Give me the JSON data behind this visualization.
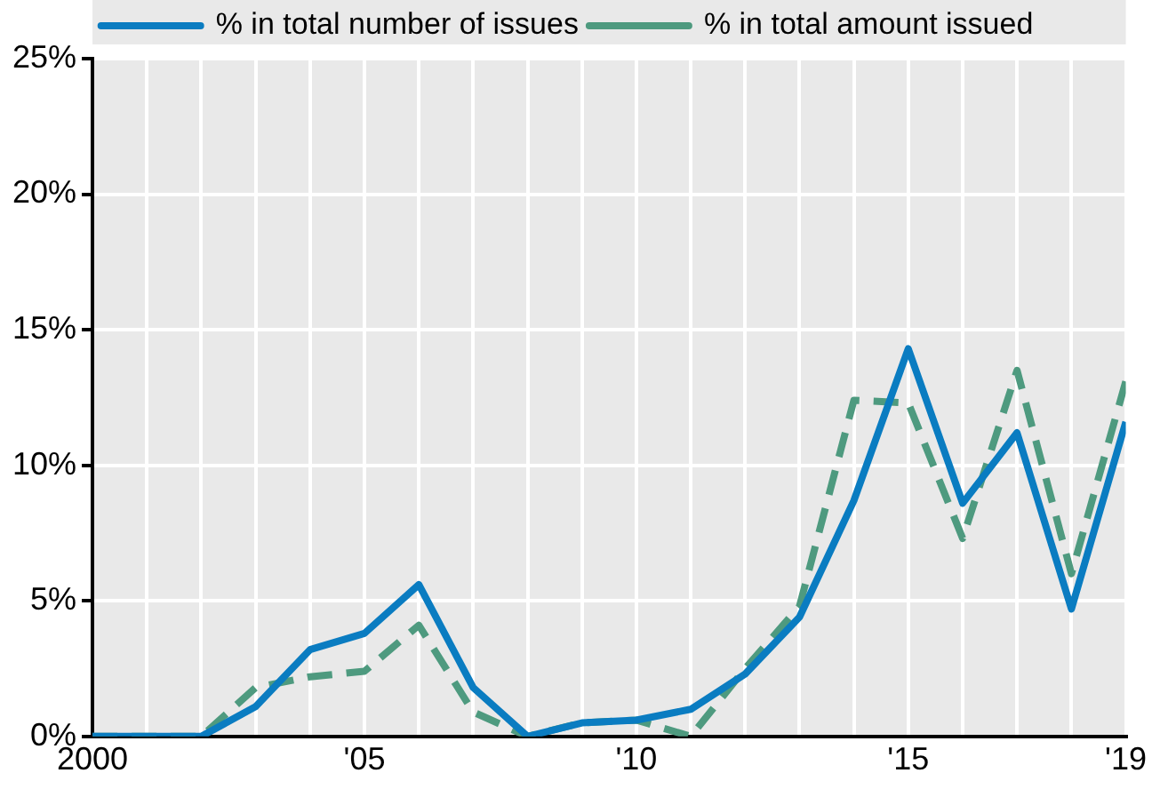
{
  "chart_data": {
    "type": "line",
    "x": [
      2000,
      2001,
      2002,
      2003,
      2004,
      2005,
      2006,
      2007,
      2008,
      2009,
      2010,
      2011,
      2012,
      2013,
      2014,
      2015,
      2016,
      2017,
      2018,
      2019
    ],
    "series": [
      {
        "name": "% in total number of issues",
        "color": "#0a7cc1",
        "line_style": "solid",
        "values": [
          0,
          0,
          0,
          1.1,
          3.2,
          3.8,
          5.6,
          1.8,
          0,
          0.5,
          0.6,
          1.0,
          2.3,
          4.4,
          8.7,
          14.3,
          8.6,
          11.2,
          4.7,
          11.6
        ]
      },
      {
        "name": "% in total amount issued",
        "color": "#4e9a7f",
        "line_style": "dashed",
        "values": [
          0,
          0,
          0,
          1.8,
          2.2,
          2.4,
          4.1,
          0.9,
          0,
          0.5,
          0.6,
          0,
          2.5,
          4.8,
          12.4,
          12.3,
          7.3,
          13.5,
          6.0,
          13.1
        ]
      }
    ],
    "xlim": [
      2000,
      2019
    ],
    "xticks": [
      {
        "value": 2000,
        "label": "2000"
      },
      {
        "value": 2001,
        "label": null
      },
      {
        "value": 2002,
        "label": null
      },
      {
        "value": 2003,
        "label": null
      },
      {
        "value": 2004,
        "label": null
      },
      {
        "value": 2005,
        "label": "'05"
      },
      {
        "value": 2006,
        "label": null
      },
      {
        "value": 2007,
        "label": null
      },
      {
        "value": 2008,
        "label": null
      },
      {
        "value": 2009,
        "label": null
      },
      {
        "value": 2010,
        "label": "'10"
      },
      {
        "value": 2011,
        "label": null
      },
      {
        "value": 2012,
        "label": null
      },
      {
        "value": 2013,
        "label": null
      },
      {
        "value": 2014,
        "label": null
      },
      {
        "value": 2015,
        "label": "'15"
      },
      {
        "value": 2016,
        "label": null
      },
      {
        "value": 2017,
        "label": null
      },
      {
        "value": 2018,
        "label": null
      },
      {
        "value": 2019,
        "label": "'19"
      }
    ],
    "ylim": [
      0,
      25
    ],
    "yticks": [
      {
        "value": 0,
        "label": "0%"
      },
      {
        "value": 5,
        "label": "5%"
      },
      {
        "value": 10,
        "label": "10%"
      },
      {
        "value": 15,
        "label": "15%"
      },
      {
        "value": 20,
        "label": "20%"
      },
      {
        "value": 25,
        "label": "25%"
      }
    ],
    "grid": true,
    "legend": "top",
    "marker": "none"
  }
}
